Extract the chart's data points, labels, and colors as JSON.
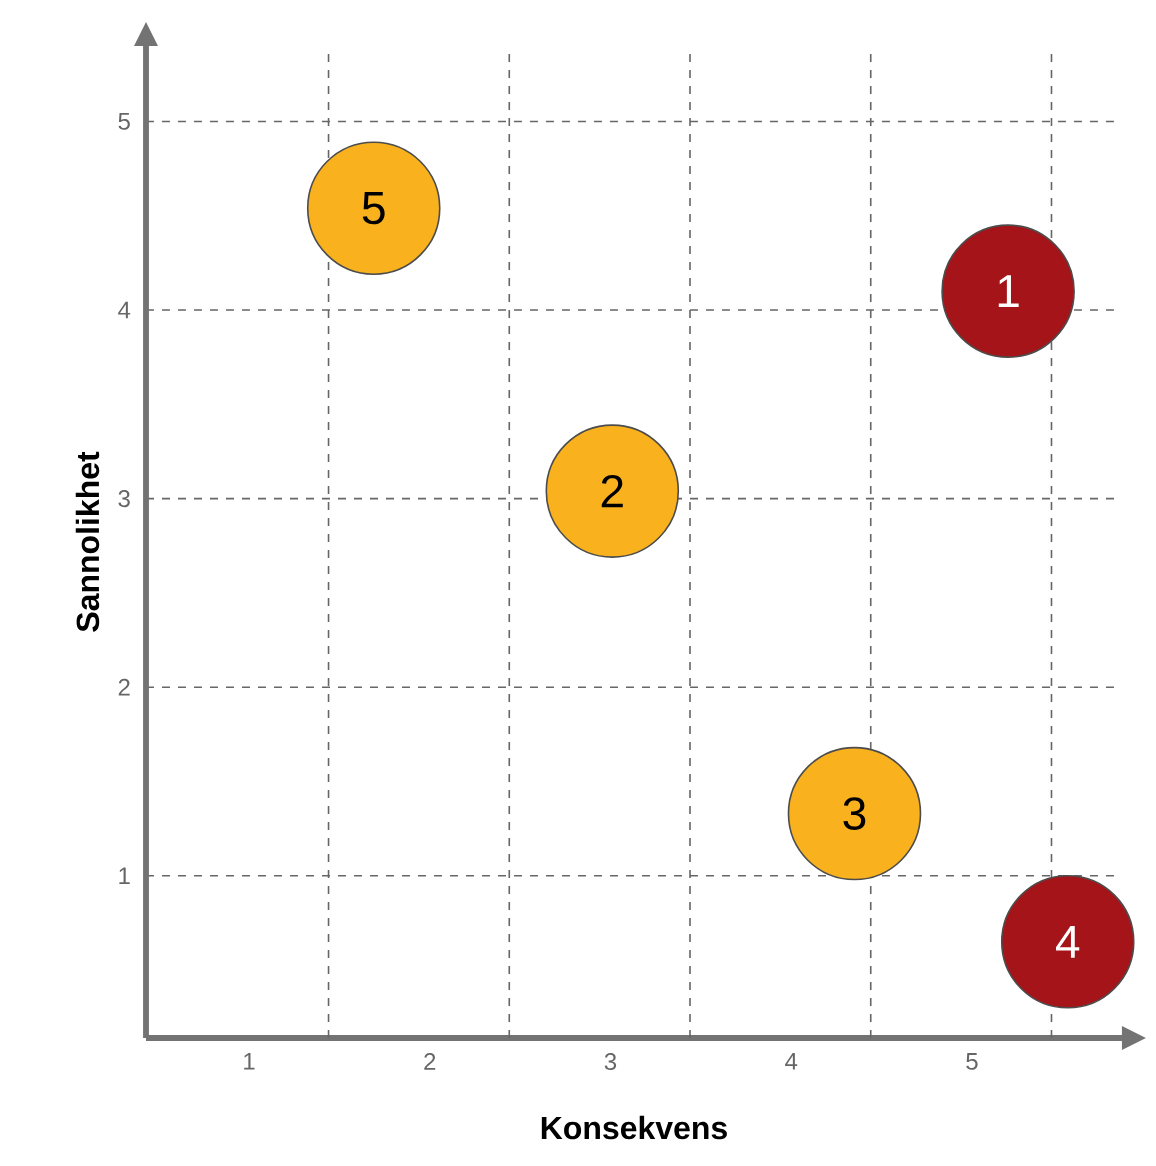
{
  "chart_data": {
    "type": "scatter",
    "xlabel": "Konsekvens",
    "ylabel": "Sannolikhet",
    "xlim": [
      0.43,
      5.83
    ],
    "ylim": [
      0.14,
      5.4
    ],
    "xticks": [
      {
        "value": 1,
        "label": "1"
      },
      {
        "value": 2,
        "label": "2"
      },
      {
        "value": 3,
        "label": "3"
      },
      {
        "value": 4,
        "label": "4"
      },
      {
        "value": 5,
        "label": "5"
      },
      {
        "value": 1.44,
        "label": null
      },
      {
        "value": 2.44,
        "label": null
      },
      {
        "value": 3.44,
        "label": null
      },
      {
        "value": 4.44,
        "label": null
      },
      {
        "value": 5.44,
        "label": null
      }
    ],
    "yticks": [
      1,
      2,
      3,
      4,
      5
    ],
    "grid": true,
    "series": [
      {
        "color": "#f9b21d",
        "x": [
          1.69,
          3.01,
          4.35
        ],
        "values": [
          4.54,
          3.04,
          1.33
        ]
      },
      {
        "color": "#a51419",
        "x": [
          5.2,
          5.53
        ],
        "values": [
          4.1,
          0.65
        ]
      }
    ],
    "annotations": [
      {
        "text": "5",
        "x": 1.69,
        "y": 4.54
      },
      {
        "text": "2",
        "x": 3.01,
        "y": 3.04
      },
      {
        "text": "3",
        "x": 4.35,
        "y": 1.33
      },
      {
        "text": "1",
        "x": 5.2,
        "y": 4.1
      },
      {
        "text": "4",
        "x": 5.53,
        "y": 0.65
      }
    ]
  }
}
